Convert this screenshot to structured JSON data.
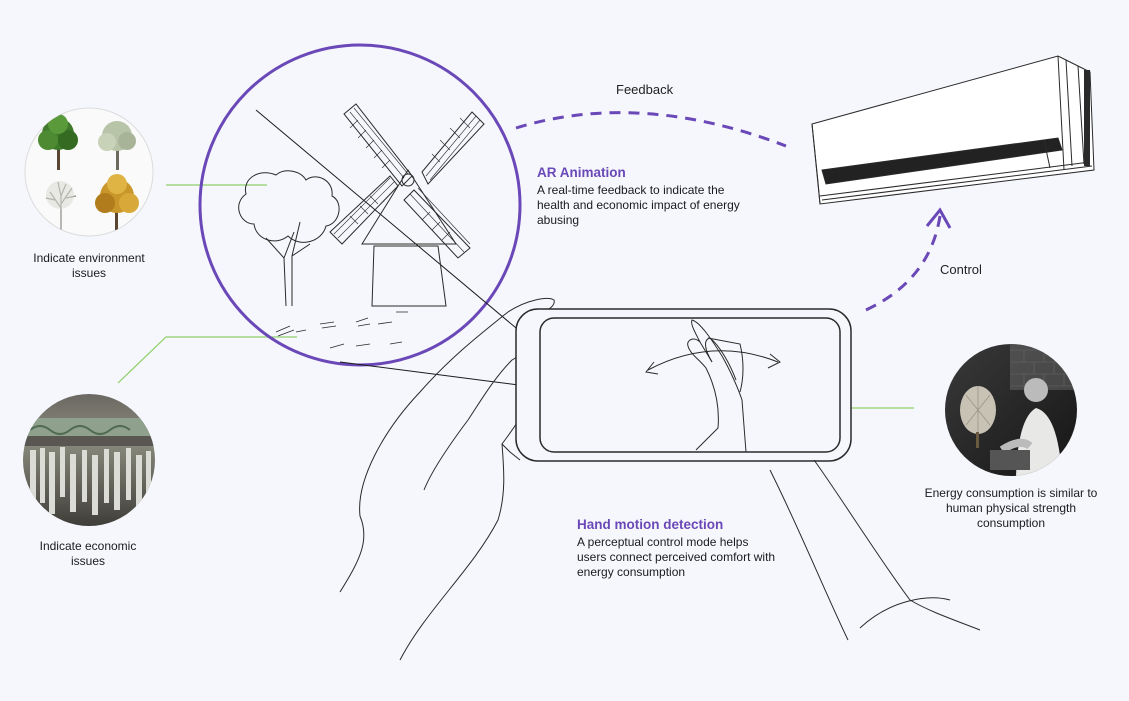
{
  "labels": {
    "feedback": "Feedback",
    "control": "Control",
    "environment": "Indicate environment issues",
    "economic": "Indicate economic issues",
    "energy_human": "Energy consumption is similar to human physical strength consumption"
  },
  "ar_animation": {
    "title": "AR Animation",
    "description": "A real-time feedback to indicate the health and economic impact of energy abusing"
  },
  "hand_motion": {
    "title": "Hand motion detection",
    "description": "A perceptual control mode helps users connect perceived comfort with energy consumption"
  },
  "colors": {
    "accent_purple": "#6a48b8",
    "connector_green": "#8fcf6a",
    "line_dark": "#2a2a2a",
    "background": "#f5f7fc"
  },
  "icons": [
    "trees-photo",
    "money-photo",
    "fan-man-photo",
    "windmill-tree-illustration",
    "air-conditioner-illustration",
    "hand-phone-illustration"
  ]
}
